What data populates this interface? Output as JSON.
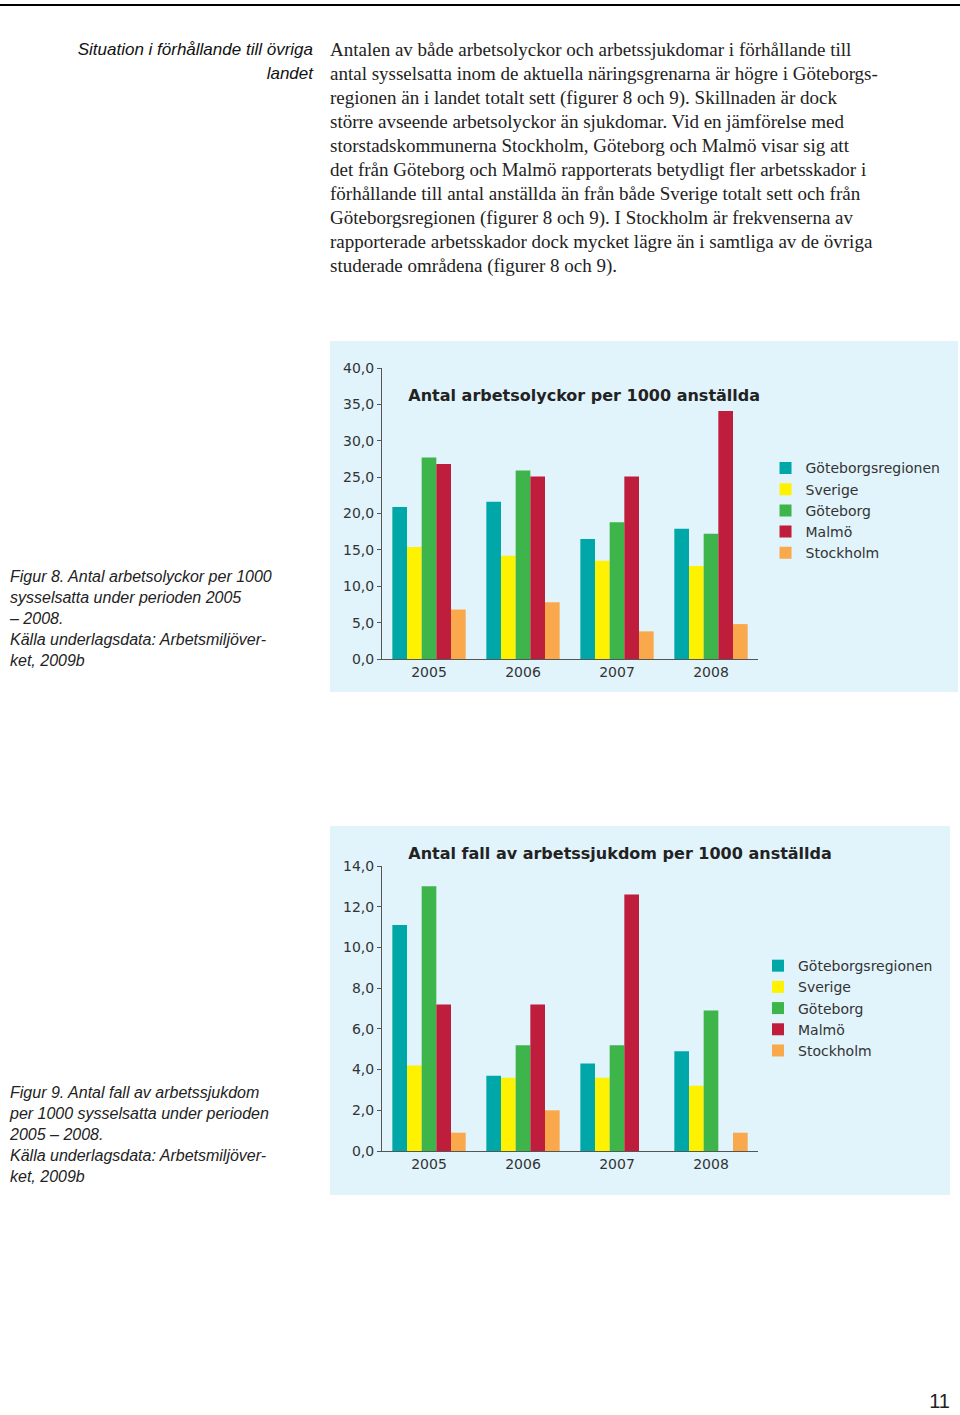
{
  "document": {
    "side_heading": [
      "Situation i förhållande till övriga",
      "landet"
    ],
    "paragraph_lines": [
      "Antalen av både arbetsolyckor och arbetssjukdomar i förhållande till",
      "antal sysselsatta inom de aktuella näringsgrenarna är högre i Göteborgs-",
      "regionen än i landet totalt sett (figurer 8 och 9). Skillnaden är dock",
      "större avseende arbetsolyckor än sjukdomar. Vid en jämförelse med",
      "storstadskommunerna Stockholm, Göteborg och Malmö visar sig att",
      "det från Göteborg och Malmö rapporterats betydligt fler arbetsskador i",
      "förhållande till antal anställda än från både Sverige totalt sett och från",
      "Göteborgsregionen (figurer 8 och 9). I Stockholm är frekvenserna av",
      "rapporterade arbetsskador dock mycket lägre än i samtliga av de övriga",
      "studerade områdena (figurer 8 och 9)."
    ],
    "figure_captions": [
      [
        "Figur 8. Antal arbetsolyckor per 1000",
        "sysselsatta under perioden 2005",
        "– 2008.",
        "Källa underlagsdata: Arbetsmiljöver-",
        "ket, 2009b"
      ],
      [
        "Figur 9. Antal fall av arbetssjukdom",
        "per 1000 sysselsatta under perioden",
        "2005 – 2008.",
        "Källa underlagsdata: Arbetsmiljöver-",
        "ket, 2009b"
      ]
    ],
    "page_number": "11"
  },
  "chart_data": [
    {
      "type": "bar",
      "title": "Antal arbetsolyckor per 1000 anställda",
      "categories": [
        "2005",
        "2006",
        "2007",
        "2008"
      ],
      "series": [
        {
          "name": "Göteborgsregionen",
          "color": "#00a7a9",
          "values": [
            20.9,
            21.6,
            16.5,
            17.9
          ]
        },
        {
          "name": "Sverige",
          "color": "#fff200",
          "values": [
            15.4,
            14.2,
            13.5,
            12.8
          ]
        },
        {
          "name": "Göteborg",
          "color": "#3db54a",
          "values": [
            27.7,
            25.9,
            18.8,
            17.2
          ]
        },
        {
          "name": "Malmö",
          "color": "#be1e3c",
          "values": [
            26.8,
            25.1,
            25.1,
            34.1
          ]
        },
        {
          "name": "Stockholm",
          "color": "#f9a94b",
          "values": [
            6.8,
            7.8,
            3.8,
            4.8
          ]
        }
      ],
      "ylim": [
        0,
        40
      ],
      "yticks": [
        {
          "value": 0,
          "label": "0,0"
        },
        {
          "value": 5,
          "label": "5,0"
        },
        {
          "value": 10,
          "label": "10,0"
        },
        {
          "value": 15,
          "label": "15,0"
        },
        {
          "value": 20,
          "label": "20,0"
        },
        {
          "value": 25,
          "label": "25,0"
        },
        {
          "value": 30,
          "label": "30,0"
        },
        {
          "value": 35,
          "label": "35,0"
        },
        {
          "value": 40,
          "label": "40,0"
        }
      ],
      "grid": false,
      "legend": "right"
    },
    {
      "type": "bar",
      "title": "Antal fall av arbetssjukdom per 1000 anställda",
      "categories": [
        "2005",
        "2006",
        "2007",
        "2008"
      ],
      "series": [
        {
          "name": "Göteborgsregionen",
          "color": "#00a7a9",
          "values": [
            11.1,
            3.7,
            4.3,
            4.9
          ]
        },
        {
          "name": "Sverige",
          "color": "#fff200",
          "values": [
            4.2,
            3.6,
            3.6,
            3.2
          ]
        },
        {
          "name": "Göteborg",
          "color": "#3db54a",
          "values": [
            13.0,
            5.2,
            5.2,
            6.9
          ]
        },
        {
          "name": "Malmö",
          "color": "#be1e3c",
          "values": [
            7.2,
            7.2,
            12.6,
            null
          ]
        },
        {
          "name": "Stockholm",
          "color": "#f9a94b",
          "values": [
            0.9,
            2.0,
            null,
            0.9
          ]
        }
      ],
      "ylim": [
        0,
        14
      ],
      "yticks": [
        {
          "value": 0,
          "label": "0,0"
        },
        {
          "value": 2,
          "label": "2,0"
        },
        {
          "value": 4,
          "label": "4,0"
        },
        {
          "value": 6,
          "label": "6,0"
        },
        {
          "value": 8,
          "label": "8,0"
        },
        {
          "value": 10,
          "label": "10,0"
        },
        {
          "value": 12,
          "label": "12,0"
        },
        {
          "value": 14,
          "label": "14,0"
        }
      ],
      "grid": false,
      "legend": "right"
    }
  ]
}
